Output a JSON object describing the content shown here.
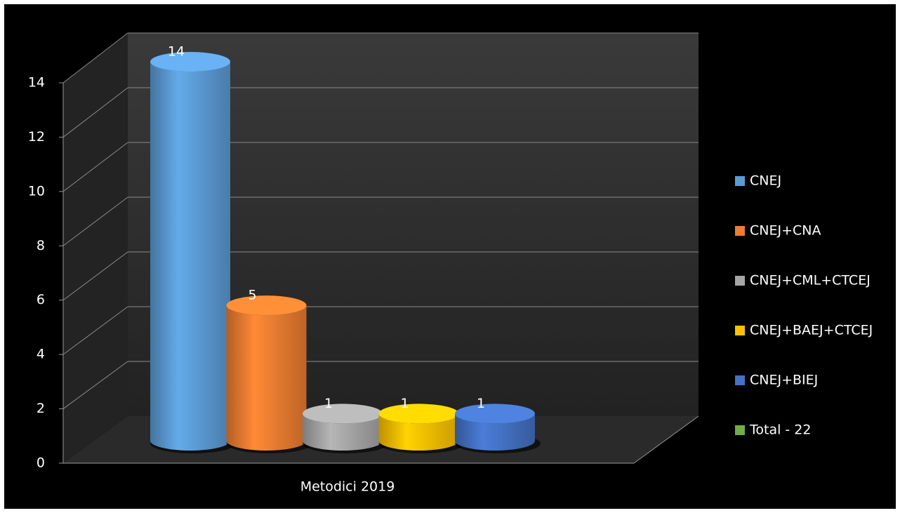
{
  "chart_data": {
    "type": "bar3d",
    "categories": [
      "Metodici 2019"
    ],
    "series": [
      {
        "name": "CNEJ",
        "color": "#5b9bd5",
        "values": [
          14
        ]
      },
      {
        "name": "CNEJ+CNA",
        "color": "#ed7d31",
        "values": [
          5
        ]
      },
      {
        "name": "CNEJ+CML+CTCEJ",
        "color": "#a5a5a5",
        "values": [
          1
        ]
      },
      {
        "name": "CNEJ+BAEJ+CTCEJ",
        "color": "#ffc000",
        "values": [
          1
        ]
      },
      {
        "name": "CNEJ+BIEJ",
        "color": "#4472c4",
        "values": [
          1
        ]
      },
      {
        "name": "Total - 22",
        "color": "#70ad47",
        "values": [
          null
        ]
      }
    ],
    "ylim": [
      0,
      14
    ],
    "yticks": [
      0,
      2,
      4,
      6,
      8,
      10,
      12,
      14
    ],
    "grid": true,
    "legend": "right"
  }
}
